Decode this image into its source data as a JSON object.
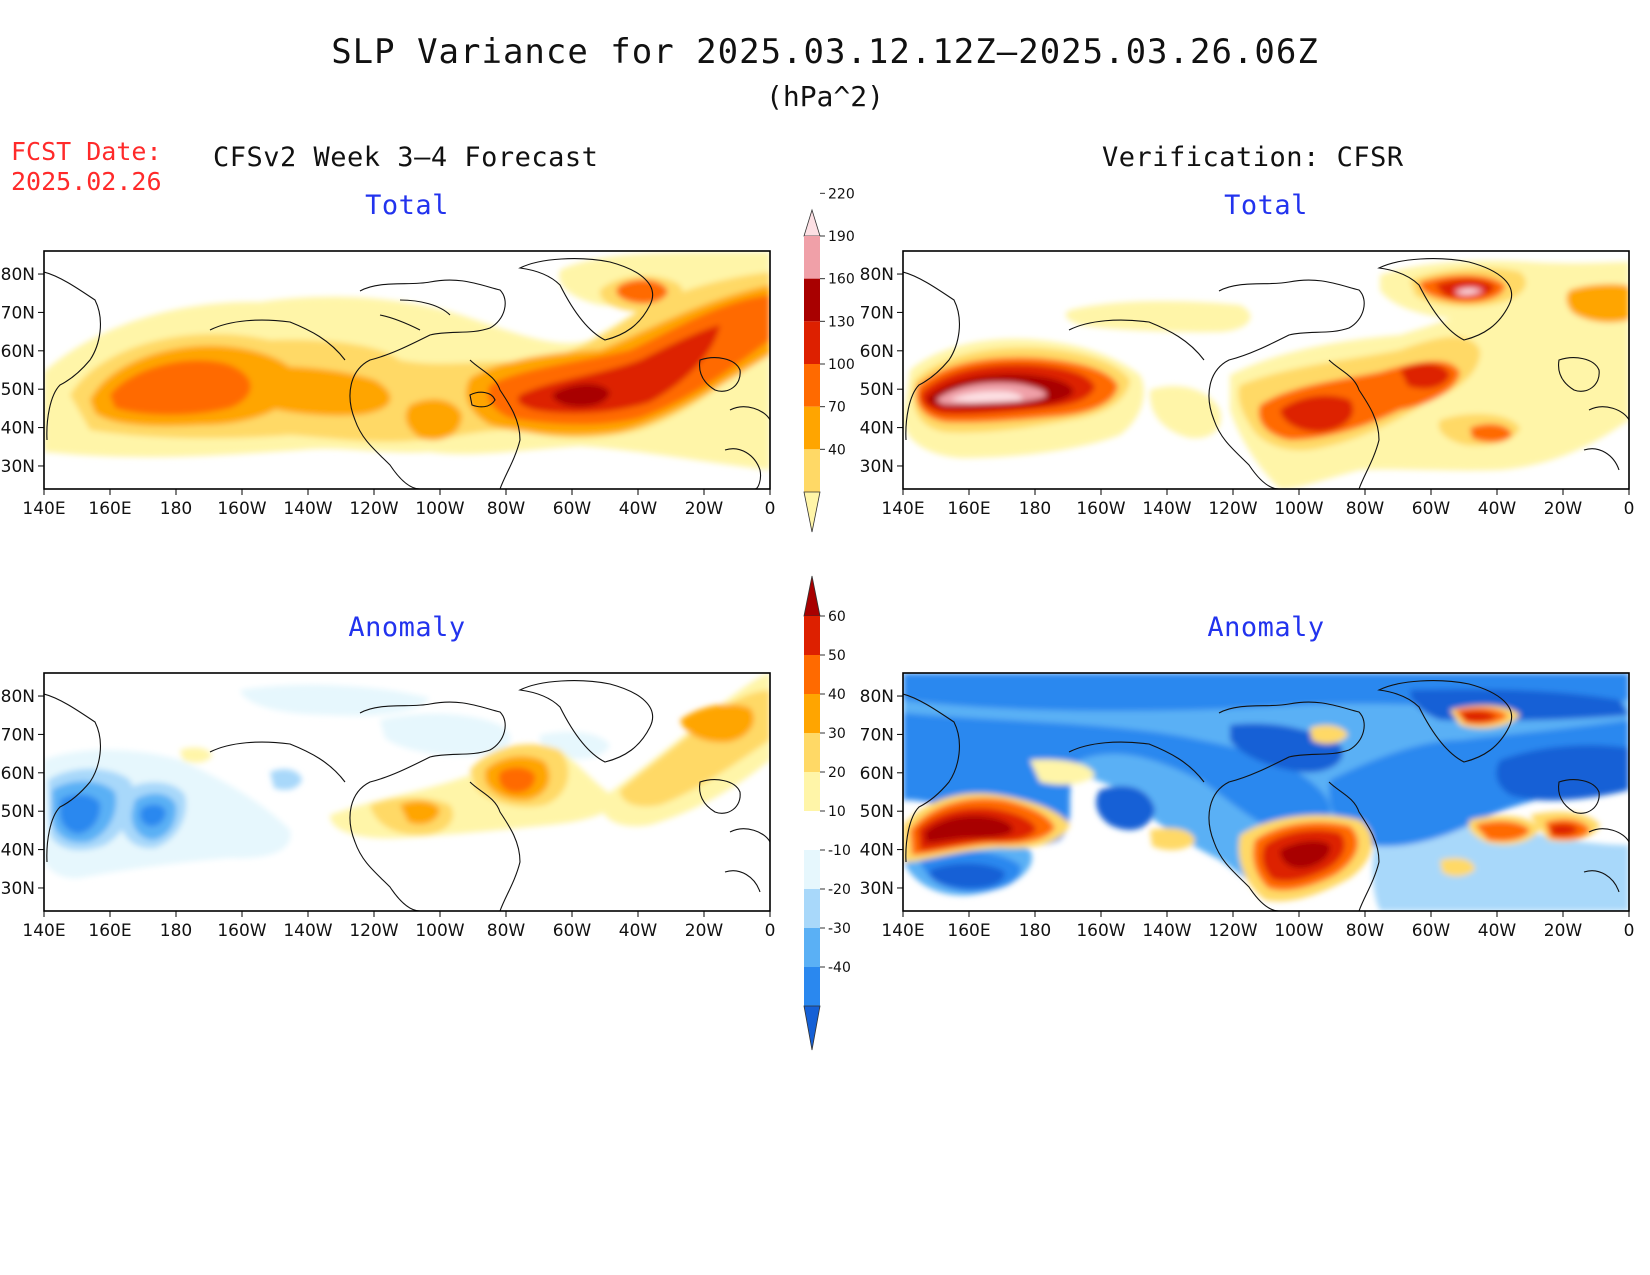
{
  "title": "SLP Variance for 2025.03.12.12Z–2025.03.26.06Z",
  "units": "(hPa^2)",
  "fcst_date": {
    "label": "FCST Date:",
    "value": "2025.02.26"
  },
  "columns": {
    "forecast": "CFSv2 Week 3–4 Forecast",
    "verification": "Verification: CFSR"
  },
  "panel_titles": {
    "forecast_total": "Total",
    "verification_total": "Total",
    "forecast_anomaly": "Anomaly",
    "verification_anomaly": "Anomaly"
  },
  "axes": {
    "lon_labels": [
      "140E",
      "160E",
      "180",
      "160W",
      "140W",
      "120W",
      "100W",
      "80W",
      "60W",
      "40W",
      "20W",
      "0"
    ],
    "lat_labels": [
      "80N",
      "70N",
      "60N",
      "50N",
      "40N",
      "30N"
    ]
  },
  "colorbars": {
    "total": {
      "levels": [
        "40",
        "70",
        "100",
        "130",
        "160",
        "190",
        "220"
      ],
      "colors": [
        "#fff5a8",
        "#ffd966",
        "#ffa500",
        "#ff6a00",
        "#dd2000",
        "#a80000",
        "#f0a0a8",
        "#fde0e4"
      ]
    },
    "anomaly": {
      "levels": [
        "-40",
        "-30",
        "-20",
        "-10",
        "10",
        "20",
        "30",
        "40",
        "50",
        "60"
      ],
      "colors": [
        "#1560d6",
        "#2a88ef",
        "#5ab0f5",
        "#a8d8fa",
        "#e6f7fd",
        "#ffffff",
        "#fff5a8",
        "#ffd966",
        "#ffa500",
        "#ff6a00",
        "#dd2000",
        "#a80000"
      ]
    }
  },
  "colors": {
    "title_text": "#111111",
    "fcst_date_text": "#ff2a2a",
    "panel_title_text": "#2233ee"
  }
}
